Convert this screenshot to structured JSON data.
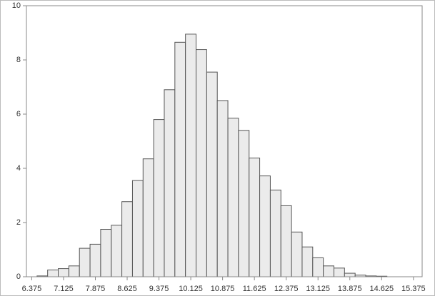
{
  "chart_data": {
    "type": "histogram",
    "bins": [
      6.5,
      6.75,
      7.0,
      7.25,
      7.5,
      7.75,
      8.0,
      8.25,
      8.5,
      8.75,
      9.0,
      9.25,
      9.5,
      9.75,
      10.0,
      10.25,
      10.5,
      10.75,
      11.0,
      11.25,
      11.5,
      11.75,
      12.0,
      12.25,
      12.5,
      12.75,
      13.0,
      13.25,
      13.5,
      13.75,
      14.0,
      14.25,
      14.5,
      14.75
    ],
    "values": [
      0.03,
      0.25,
      0.3,
      0.4,
      1.05,
      1.2,
      1.75,
      1.9,
      2.77,
      3.55,
      4.35,
      5.8,
      6.9,
      8.65,
      8.95,
      8.38,
      7.55,
      6.5,
      5.85,
      5.4,
      4.38,
      3.72,
      3.2,
      2.62,
      1.65,
      1.1,
      0.7,
      0.4,
      0.32,
      0.13,
      0.06,
      0.03,
      0.02
    ],
    "color": "#ebebeb",
    "xlim": [
      6.25,
      15.58
    ],
    "xticks": [
      6.375,
      7.125,
      7.875,
      8.625,
      9.375,
      10.125,
      10.875,
      11.625,
      12.375,
      13.125,
      13.875,
      14.625,
      15.375
    ],
    "ylim": [
      0,
      10
    ],
    "yticks": [
      0,
      2,
      4,
      6,
      8,
      10
    ]
  }
}
